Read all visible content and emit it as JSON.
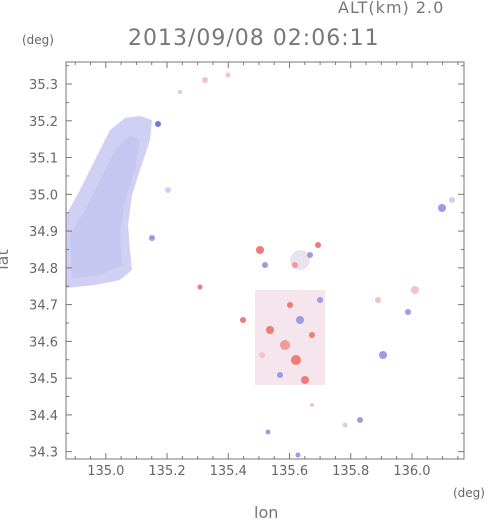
{
  "header": {
    "altitude_label": "ALT(km) 2.0",
    "datetime": "2013/09/08 02:06:11"
  },
  "axes": {
    "y_unit": "(deg)",
    "x_unit": "(deg)",
    "y_label": "lat",
    "x_label": "lon",
    "x_ticks": [
      "135.0",
      "135.2",
      "135.4",
      "135.6",
      "135.8",
      "136.0"
    ],
    "x_tick_values": [
      135.0,
      135.2,
      135.4,
      135.6,
      135.8,
      136.0
    ],
    "y_ticks": [
      "35.3",
      "35.2",
      "35.1",
      "35.0",
      "34.9",
      "34.8",
      "34.7",
      "34.6",
      "34.5",
      "34.4",
      "34.3"
    ],
    "y_tick_values": [
      35.3,
      35.2,
      35.1,
      35.0,
      34.9,
      34.8,
      34.7,
      34.6,
      34.5,
      34.4,
      34.3
    ],
    "xlim": [
      134.87,
      136.17
    ],
    "ylim": [
      34.28,
      35.36
    ]
  },
  "colors": {
    "negative": "#9b9be6",
    "negative_light": "#d0d0f4",
    "positive": "#f07a7a",
    "positive_light": "#f6c2c2",
    "frame": "#777777"
  }
}
